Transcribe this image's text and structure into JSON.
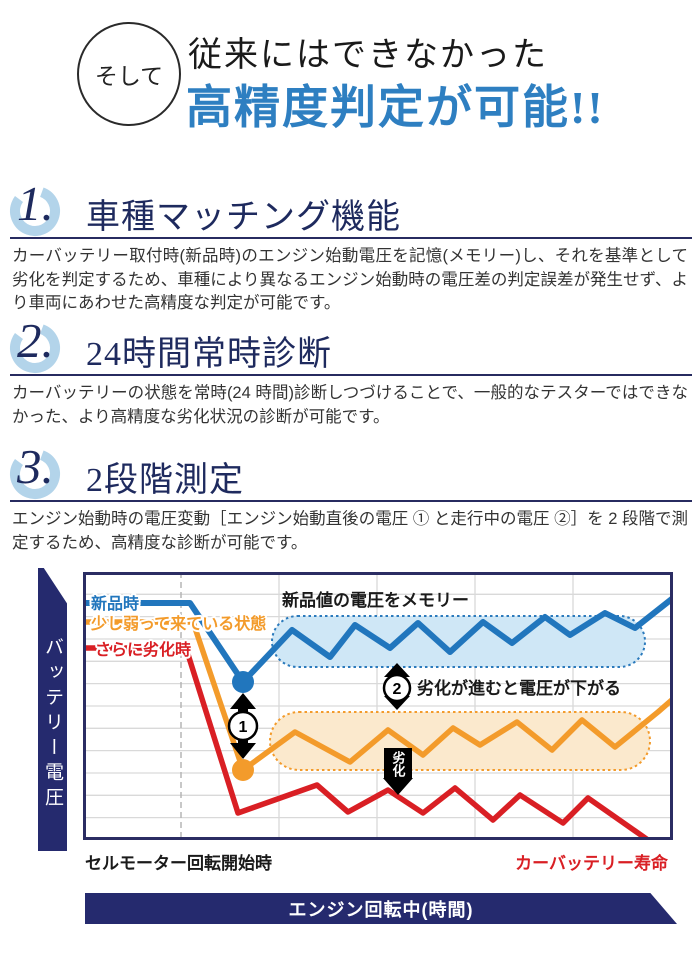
{
  "header": {
    "badge": "そして",
    "line1": "従来にはできなかった",
    "line2": "高精度判定が可能!!",
    "accent_color": "#2e7fc1"
  },
  "sections": [
    {
      "num": "1.",
      "title": "車種マッチング機能",
      "body": "カーバッテリー取付時(新品時)のエンジン始動電圧を記憶(メモリー)し、それを基準として劣化を判定するため、車種により異なるエンジン始動時の電圧差の判定誤差が発生せず、より車両にあわせた高精度な判定が可能です。"
    },
    {
      "num": "2.",
      "title": "24時間常時診断",
      "body": "カーバッテリーの状態を常時(24 時間)診断しつづけることで、一般的なテスターではできなかった、より高精度な劣化状況の診断が可能です。"
    },
    {
      "num": "3.",
      "title": "2段階測定",
      "body": "エンジン始動時の電圧変動［エンジン始動直後の電圧 ① と走行中の電圧 ②］を 2 段階で測定するため、高精度な診断が可能です。"
    }
  ],
  "chart_data": {
    "type": "line",
    "ylabel": "バッテリー電圧",
    "xlabel": "エンジン回転中(時間)",
    "x_start_label": "セルモーター回転開始時",
    "x_end_label": "カーバッテリー寿命",
    "grid": true,
    "navy_color": "#252a6e",
    "annotations": {
      "memory": "新品値の電圧をメモリー",
      "drop_label": "劣化が進むと電圧が下がる",
      "deterioration": "劣化",
      "step1": "1",
      "step2": "2"
    },
    "series": [
      {
        "id": "new",
        "name": "新品時",
        "color": "#2176bd",
        "width": 6,
        "points": [
          [
            0,
            31
          ],
          [
            107,
            31
          ],
          [
            160,
            110
          ],
          [
            209,
            58
          ],
          [
            247,
            85
          ],
          [
            272,
            53
          ],
          [
            307,
            76
          ],
          [
            335,
            51
          ],
          [
            367,
            80
          ],
          [
            400,
            50
          ],
          [
            429,
            71
          ],
          [
            462,
            45
          ],
          [
            487,
            63
          ],
          [
            522,
            41
          ],
          [
            552,
            56
          ],
          [
            590,
            26
          ]
        ]
      },
      {
        "id": "weak",
        "name": "少し弱って来ている状態",
        "color": "#f39b2b",
        "width": 5.5,
        "points": [
          [
            0,
            50
          ],
          [
            110,
            50
          ],
          [
            160,
            198
          ],
          [
            212,
            160
          ],
          [
            267,
            190
          ],
          [
            305,
            158
          ],
          [
            340,
            183
          ],
          [
            370,
            156
          ],
          [
            397,
            173
          ],
          [
            434,
            150
          ],
          [
            469,
            178
          ],
          [
            499,
            148
          ],
          [
            532,
            175
          ],
          [
            575,
            140
          ],
          [
            590,
            127
          ]
        ]
      },
      {
        "id": "degraded",
        "name": "さらに劣化時",
        "color": "#d91f24",
        "width": 5.5,
        "points": [
          [
            0,
            76
          ],
          [
            103,
            76
          ],
          [
            155,
            241
          ],
          [
            234,
            213
          ],
          [
            265,
            240
          ],
          [
            305,
            218
          ],
          [
            340,
            241
          ],
          [
            372,
            216
          ],
          [
            410,
            248
          ],
          [
            437,
            223
          ],
          [
            480,
            251
          ],
          [
            505,
            226
          ],
          [
            565,
            268
          ]
        ]
      }
    ],
    "markers": [
      {
        "x": 160,
        "y": 110,
        "r": 11,
        "color": "#2176bd"
      },
      {
        "x": 160,
        "y": 198,
        "r": 11,
        "color": "#f39b2b"
      }
    ]
  }
}
